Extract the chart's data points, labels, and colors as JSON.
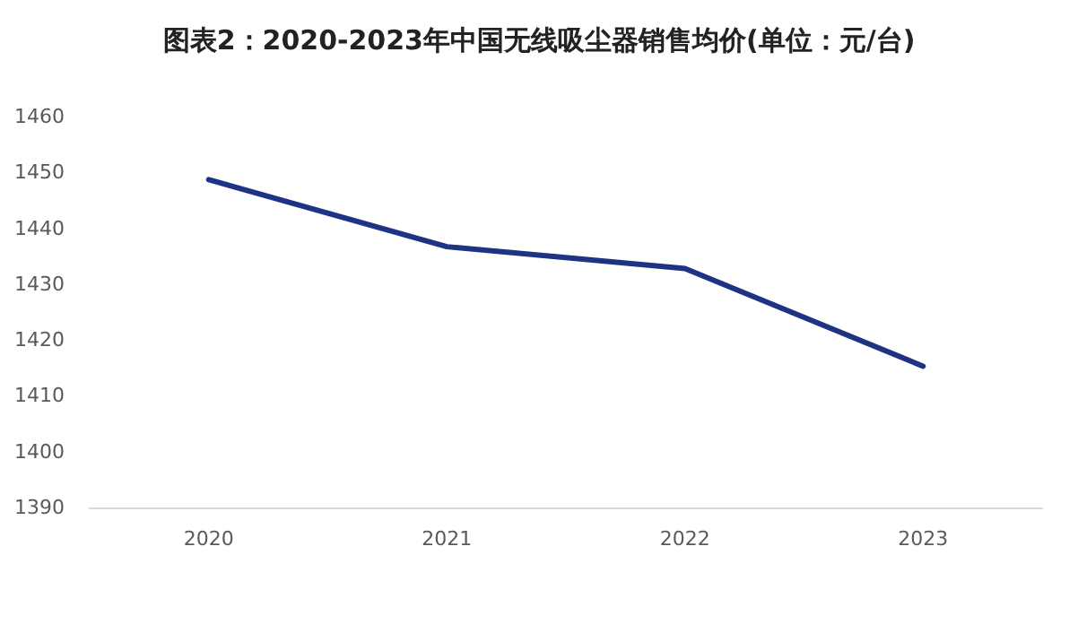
{
  "chart_data": {
    "type": "line",
    "title": "图表2：2020-2023年中国无线吸尘器销售均价(单位：元/台)",
    "categories": [
      "2020",
      "2021",
      "2022",
      "2023"
    ],
    "series": [
      {
        "color": "#1f3385",
        "values": [
          1448.7,
          1436.7,
          1432.8,
          1415.3
        ]
      }
    ],
    "ylim": [
      1390,
      1460
    ],
    "yticks": [
      1390,
      1400,
      1410,
      1420,
      1430,
      1440,
      1450,
      1460
    ],
    "grid": false,
    "marker": "none",
    "line_style": "solid"
  }
}
